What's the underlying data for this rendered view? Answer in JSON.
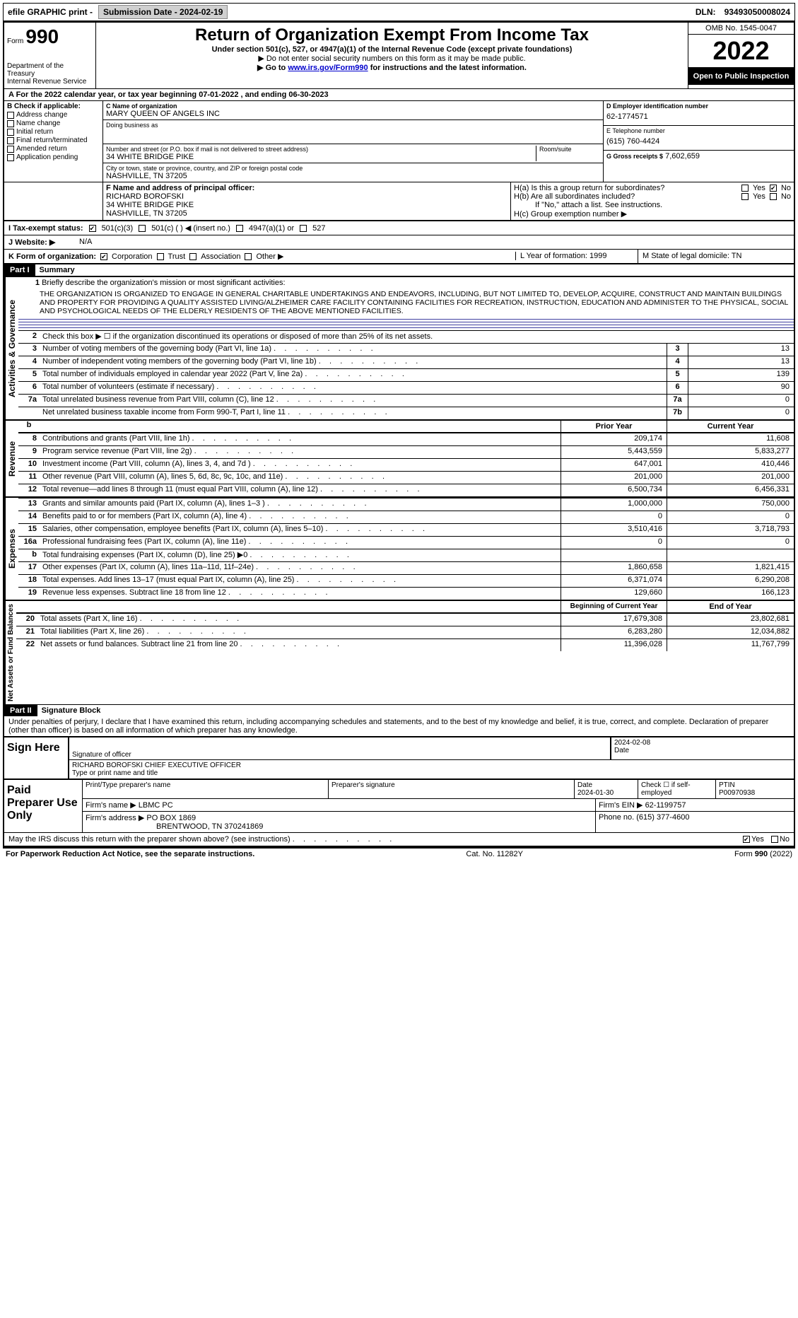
{
  "topbar": {
    "efile": "efile GRAPHIC print -",
    "submission_btn": "Submission Date - 2024-02-19",
    "dln_label": "DLN:",
    "dln": "93493050008024"
  },
  "header": {
    "form_word": "Form",
    "form_num": "990",
    "dept": "Department of the Treasury\nInternal Revenue Service",
    "title": "Return of Organization Exempt From Income Tax",
    "sub1": "Under section 501(c), 527, or 4947(a)(1) of the Internal Revenue Code (except private foundations)",
    "sub2": "▶ Do not enter social security numbers on this form as it may be made public.",
    "sub3_pre": "▶ Go to ",
    "sub3_link": "www.irs.gov/Form990",
    "sub3_post": " for instructions and the latest information.",
    "omb": "OMB No. 1545-0047",
    "year": "2022",
    "open": "Open to Public Inspection"
  },
  "row_a": "A For the 2022 calendar year, or tax year beginning 07-01-2022    , and ending 06-30-2023",
  "col_b": {
    "label": "B Check if applicable:",
    "opts": [
      "Address change",
      "Name change",
      "Initial return",
      "Final return/terminated",
      "Amended return",
      "Application pending"
    ]
  },
  "col_c": {
    "name_label": "C Name of organization",
    "name": "MARY QUEEN OF ANGELS INC",
    "dba_label": "Doing business as",
    "dba": "",
    "street_label": "Number and street (or P.O. box if mail is not delivered to street address)",
    "street": "34 WHITE BRIDGE PIKE",
    "room_label": "Room/suite",
    "city_label": "City or town, state or province, country, and ZIP or foreign postal code",
    "city": "NASHVILLE, TN  37205",
    "f_label": "F Name and address of principal officer:",
    "f_name": "RICHARD BOROFSKI",
    "f_addr1": "34 WHITE BRIDGE PIKE",
    "f_addr2": "NASHVILLE, TN  37205"
  },
  "col_de": {
    "d_label": "D Employer identification number",
    "d_val": "62-1774571",
    "e_label": "E Telephone number",
    "e_val": "(615) 760-4424",
    "g_label": "G Gross receipts $",
    "g_val": "7,602,659"
  },
  "col_h": {
    "ha": "H(a)  Is this a group return for subordinates?",
    "hb": "H(b)  Are all subordinates included?",
    "hb_note": "If \"No,\" attach a list. See instructions.",
    "hc": "H(c)  Group exemption number ▶",
    "yes": "Yes",
    "no": "No"
  },
  "tax_status": {
    "i_label": "I   Tax-exempt status:",
    "o1": "501(c)(3)",
    "o2": "501(c) (  ) ◀ (insert no.)",
    "o3": "4947(a)(1) or",
    "o4": "527"
  },
  "j_row": {
    "label": "J   Website: ▶",
    "val": "N/A"
  },
  "k_row": {
    "label": "K Form of organization:",
    "o1": "Corporation",
    "o2": "Trust",
    "o3": "Association",
    "o4": "Other ▶",
    "l": "L Year of formation: 1999",
    "m": "M State of legal domicile: TN"
  },
  "part1": {
    "num": "Part I",
    "title": "Summary"
  },
  "mission": {
    "line1_num": "1",
    "line1_label": "Briefly describe the organization's mission or most significant activities:",
    "text": "THE ORGANIZATION IS ORGANIZED TO ENGAGE IN GENERAL CHARITABLE UNDERTAKINGS AND ENDEAVORS, INCLUDING, BUT NOT LIMITED TO, DEVELOP, ACQUIRE, CONSTRUCT AND MAINTAIN BUILDINGS AND PROPERTY FOR PROVIDING A QUALITY ASSISTED LIVING/ALZHEIMER CARE FACILITY CONTAINING FACILITIES FOR RECREATION, INSTRUCTION, EDUCATION AND ADMINISTER TO THE PHYSICAL, SOCIAL AND PSYCHOLOGICAL NEEDS OF THE ELDERLY RESIDENTS OF THE ABOVE MENTIONED FACILITIES."
  },
  "gov_rows": [
    {
      "n": "2",
      "d": "Check this box ▶ ☐  if the organization discontinued its operations or disposed of more than 25% of its net assets."
    },
    {
      "n": "3",
      "d": "Number of voting members of the governing body (Part VI, line 1a)",
      "dots": true,
      "box": "3",
      "v": "13"
    },
    {
      "n": "4",
      "d": "Number of independent voting members of the governing body (Part VI, line 1b)",
      "dots": true,
      "box": "4",
      "v": "13"
    },
    {
      "n": "5",
      "d": "Total number of individuals employed in calendar year 2022 (Part V, line 2a)",
      "dots": true,
      "box": "5",
      "v": "139"
    },
    {
      "n": "6",
      "d": "Total number of volunteers (estimate if necessary)",
      "dots": true,
      "box": "6",
      "v": "90"
    },
    {
      "n": "7a",
      "d": "Total unrelated business revenue from Part VIII, column (C), line 12",
      "dots": true,
      "box": "7a",
      "v": "0"
    },
    {
      "n": "",
      "d": "Net unrelated business taxable income from Form 990-T, Part I, line 11",
      "dots": true,
      "box": "7b",
      "v": "0"
    }
  ],
  "section_labels": {
    "gov": "Activities & Governance",
    "rev": "Revenue",
    "exp": "Expenses",
    "net": "Net Assets or Fund Balances"
  },
  "col_heads": {
    "prior": "Prior Year",
    "current": "Current Year",
    "begin": "Beginning of Current Year",
    "end": "End of Year"
  },
  "rev_rows": [
    {
      "n": "8",
      "d": "Contributions and grants (Part VIII, line 1h)",
      "p": "209,174",
      "c": "11,608"
    },
    {
      "n": "9",
      "d": "Program service revenue (Part VIII, line 2g)",
      "p": "5,443,559",
      "c": "5,833,277"
    },
    {
      "n": "10",
      "d": "Investment income (Part VIII, column (A), lines 3, 4, and 7d )",
      "p": "647,001",
      "c": "410,446"
    },
    {
      "n": "11",
      "d": "Other revenue (Part VIII, column (A), lines 5, 6d, 8c, 9c, 10c, and 11e)",
      "p": "201,000",
      "c": "201,000"
    },
    {
      "n": "12",
      "d": "Total revenue—add lines 8 through 11 (must equal Part VIII, column (A), line 12)",
      "p": "6,500,734",
      "c": "6,456,331"
    }
  ],
  "exp_rows": [
    {
      "n": "13",
      "d": "Grants and similar amounts paid (Part IX, column (A), lines 1–3 )",
      "p": "1,000,000",
      "c": "750,000"
    },
    {
      "n": "14",
      "d": "Benefits paid to or for members (Part IX, column (A), line 4)",
      "p": "0",
      "c": "0"
    },
    {
      "n": "15",
      "d": "Salaries, other compensation, employee benefits (Part IX, column (A), lines 5–10)",
      "p": "3,510,416",
      "c": "3,718,793"
    },
    {
      "n": "16a",
      "d": "Professional fundraising fees (Part IX, column (A), line 11e)",
      "p": "0",
      "c": "0"
    },
    {
      "n": "b",
      "d": "Total fundraising expenses (Part IX, column (D), line 25) ▶0",
      "p": "",
      "c": "",
      "gray": true
    },
    {
      "n": "17",
      "d": "Other expenses (Part IX, column (A), lines 11a–11d, 11f–24e)",
      "p": "1,860,658",
      "c": "1,821,415"
    },
    {
      "n": "18",
      "d": "Total expenses. Add lines 13–17 (must equal Part IX, column (A), line 25)",
      "p": "6,371,074",
      "c": "6,290,208"
    },
    {
      "n": "19",
      "d": "Revenue less expenses. Subtract line 18 from line 12",
      "p": "129,660",
      "c": "166,123"
    }
  ],
  "net_rows": [
    {
      "n": "20",
      "d": "Total assets (Part X, line 16)",
      "p": "17,679,308",
      "c": "23,802,681"
    },
    {
      "n": "21",
      "d": "Total liabilities (Part X, line 26)",
      "p": "6,283,280",
      "c": "12,034,882"
    },
    {
      "n": "22",
      "d": "Net assets or fund balances. Subtract line 21 from line 20",
      "p": "11,396,028",
      "c": "11,767,799"
    }
  ],
  "part2": {
    "num": "Part II",
    "title": "Signature Block"
  },
  "perjury": "Under penalties of perjury, I declare that I have examined this return, including accompanying schedules and statements, and to the best of my knowledge and belief, it is true, correct, and complete. Declaration of preparer (other than officer) is based on all information of which preparer has any knowledge.",
  "sign": {
    "here": "Sign Here",
    "sig_label": "Signature of officer",
    "date": "2024-02-08",
    "date_label": "Date",
    "name": "RICHARD BOROFSKI CHIEF EXECUTIVE OFFICER",
    "name_label": "Type or print name and title"
  },
  "preparer": {
    "label": "Paid Preparer Use Only",
    "h1": "Print/Type preparer's name",
    "h2": "Preparer's signature",
    "h3": "Date",
    "date": "2024-01-30",
    "h4": "Check ☐ if self-employed",
    "h5": "PTIN",
    "ptin": "P00970938",
    "firm_name_l": "Firm's name    ▶",
    "firm_name": "LBMC PC",
    "firm_ein_l": "Firm's EIN ▶",
    "firm_ein": "62-1199757",
    "firm_addr_l": "Firm's address ▶",
    "firm_addr": "PO BOX 1869",
    "firm_addr2": "BRENTWOOD, TN  370241869",
    "phone_l": "Phone no.",
    "phone": "(615) 377-4600"
  },
  "discuss": "May the IRS discuss this return with the preparer shown above? (see instructions)",
  "footer": {
    "left": "For Paperwork Reduction Act Notice, see the separate instructions.",
    "mid": "Cat. No. 11282Y",
    "right_pre": "Form ",
    "right_num": "990",
    "right_post": " (2022)"
  }
}
